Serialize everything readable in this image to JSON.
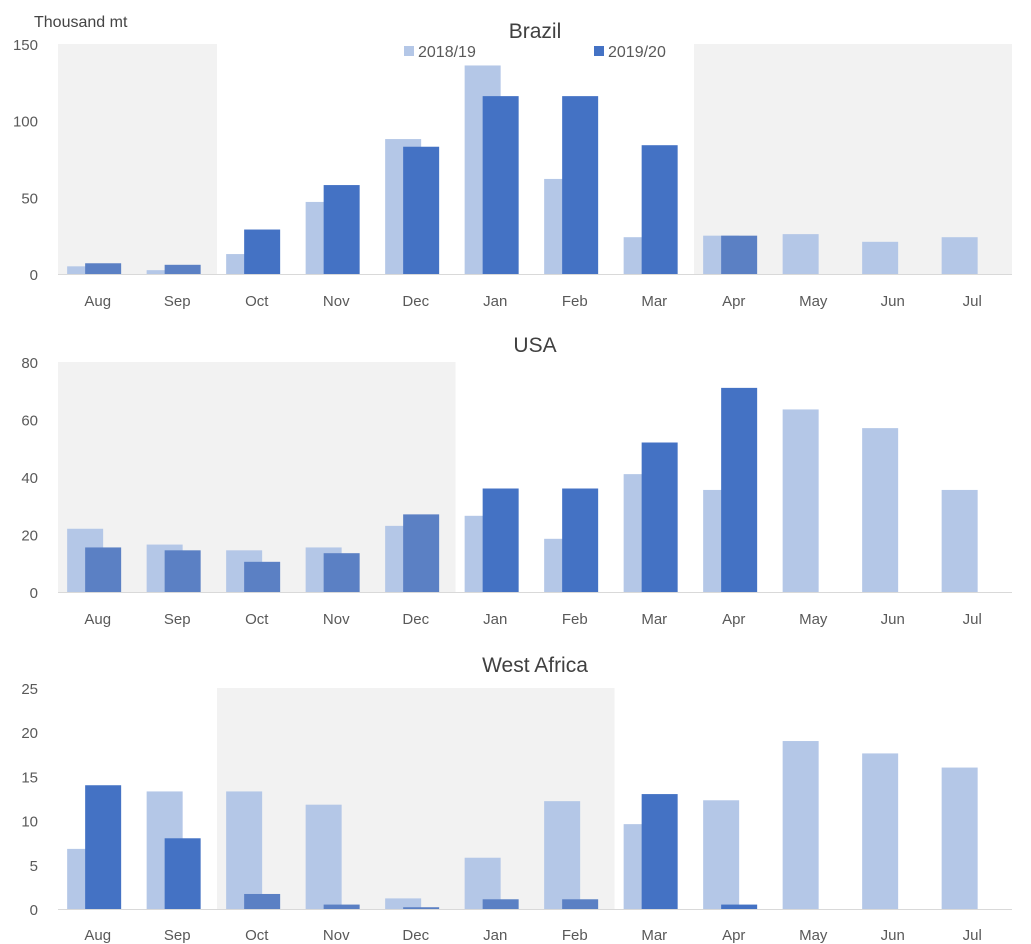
{
  "unit_label": "Thousand mt",
  "legend": {
    "items": [
      {
        "name": "2018/19",
        "color": "#b4c7e7"
      },
      {
        "name": "2019/20",
        "color": "#4472c4"
      }
    ]
  },
  "colors": {
    "series_2018_19": "#b4c7e7",
    "series_2019_20": "#4472c4",
    "series_2019_20_shaded": "#5b80c4",
    "shade": "#f2f2f2",
    "axis_text": "#595959",
    "title_text": "#404040"
  },
  "chart_data": [
    {
      "type": "bar",
      "title": "Brazil",
      "categories": [
        "Aug",
        "Sep",
        "Oct",
        "Nov",
        "Dec",
        "Jan",
        "Feb",
        "Mar",
        "Apr",
        "May",
        "Jun",
        "Jul"
      ],
      "yticks": [
        "0",
        "50",
        "100",
        "150"
      ],
      "ylim": [
        0,
        150
      ],
      "shaded_ranges": [
        [
          "Aug",
          "Sep"
        ],
        [
          "Apr",
          "Jul"
        ]
      ],
      "legend_position": "top-center",
      "series": [
        {
          "name": "2018/19",
          "values": [
            5,
            2.5,
            13,
            47,
            88,
            136,
            62,
            24,
            25,
            26,
            21,
            24
          ]
        },
        {
          "name": "2019/20",
          "values": [
            7,
            6,
            29,
            58,
            83,
            116,
            116,
            84,
            25,
            null,
            null,
            null
          ]
        }
      ]
    },
    {
      "type": "bar",
      "title": "USA",
      "categories": [
        "Aug",
        "Sep",
        "Oct",
        "Nov",
        "Dec",
        "Jan",
        "Feb",
        "Mar",
        "Apr",
        "May",
        "Jun",
        "Jul"
      ],
      "yticks": [
        "0",
        "20",
        "40",
        "60",
        "80"
      ],
      "ylim": [
        0,
        80
      ],
      "shaded_ranges": [
        [
          "Aug",
          "Dec"
        ]
      ],
      "series": [
        {
          "name": "2018/19",
          "values": [
            22,
            16.5,
            14.5,
            15.5,
            23,
            26.5,
            18.5,
            41,
            35.5,
            63.5,
            57,
            35.5
          ]
        },
        {
          "name": "2019/20",
          "values": [
            15.5,
            14.5,
            10.5,
            13.5,
            27,
            36,
            36,
            52,
            71,
            null,
            null,
            null
          ]
        }
      ]
    },
    {
      "type": "bar",
      "title": "West Africa",
      "categories": [
        "Aug",
        "Sep",
        "Oct",
        "Nov",
        "Dec",
        "Jan",
        "Feb",
        "Mar",
        "Apr",
        "May",
        "Jun",
        "Jul"
      ],
      "yticks": [
        "0",
        "5",
        "10",
        "15",
        "20",
        "25"
      ],
      "ylim": [
        0,
        25
      ],
      "shaded_ranges": [
        [
          "Oct",
          "Feb"
        ]
      ],
      "series": [
        {
          "name": "2018/19",
          "values": [
            6.8,
            13.3,
            13.3,
            11.8,
            1.2,
            5.8,
            12.2,
            9.6,
            12.3,
            19,
            17.6,
            16
          ]
        },
        {
          "name": "2019/20",
          "values": [
            14,
            8,
            1.7,
            0.5,
            0.2,
            1.1,
            1.1,
            13,
            0.5,
            null,
            null,
            null
          ]
        }
      ]
    }
  ]
}
